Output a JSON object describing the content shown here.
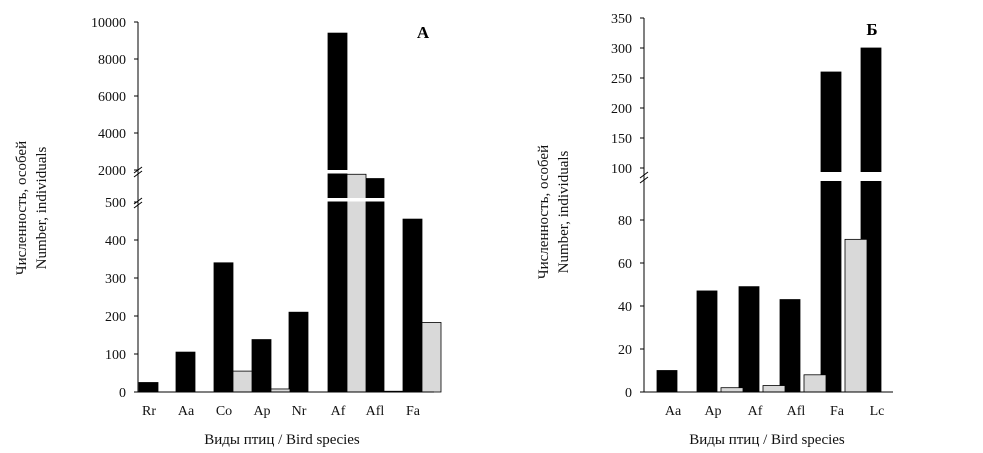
{
  "chart_data": [
    {
      "type": "bar",
      "panel_label": "А",
      "axis_break": "broken y-axis: upper segments 0–10000 (ticks 2000–10000) and 0–500 (tick 500)",
      "ylabel_ru": "Численность, особей",
      "ylabel_en": "Number, individuals",
      "xlabel": "Виды птиц / Bird species",
      "categories": [
        "Rr",
        "Aa",
        "Co",
        "Ap",
        "Nr",
        "Af",
        "Afl",
        "Fa"
      ],
      "series": [
        {
          "color": "#000000",
          "values": [
            25,
            105,
            340,
            138,
            210,
            9400,
            1600,
            455
          ]
        },
        {
          "color": "#d9d9d9",
          "values": [
            0,
            0,
            55,
            8,
            0,
            1800,
            2,
            183
          ]
        }
      ],
      "segments": [
        {
          "ylim": [
            0,
            500
          ],
          "ticks": [
            0,
            100,
            200,
            300,
            400,
            500
          ]
        },
        {
          "ylim": [
            1600,
            10000
          ],
          "ticks": [
            2000,
            4000,
            6000,
            8000,
            10000
          ]
        }
      ],
      "grid": false
    },
    {
      "type": "bar",
      "panel_label": "Б",
      "axis_break": "broken y-axis: lower segment 0–100, upper segment 100–350",
      "ylabel_ru": "Численность, особей",
      "ylabel_en": "Number, individuals",
      "xlabel": "Виды птиц / Bird species",
      "categories": [
        "Aa",
        "Ap",
        "Af",
        "Afl",
        "Fa",
        "Lc"
      ],
      "series": [
        {
          "color": "#000000",
          "values": [
            10,
            47,
            49,
            43,
            260,
            300
          ]
        },
        {
          "color": "#d9d9d9",
          "values": [
            0,
            2,
            3,
            8,
            71,
            0
          ]
        }
      ],
      "segments": [
        {
          "ylim": [
            0,
            97
          ],
          "ticks": [
            0,
            20,
            40,
            60,
            80,
            100
          ]
        },
        {
          "ylim": [
            100,
            350
          ],
          "ticks": [
            100,
            150,
            200,
            250,
            300,
            350
          ]
        }
      ],
      "grid": false
    }
  ]
}
